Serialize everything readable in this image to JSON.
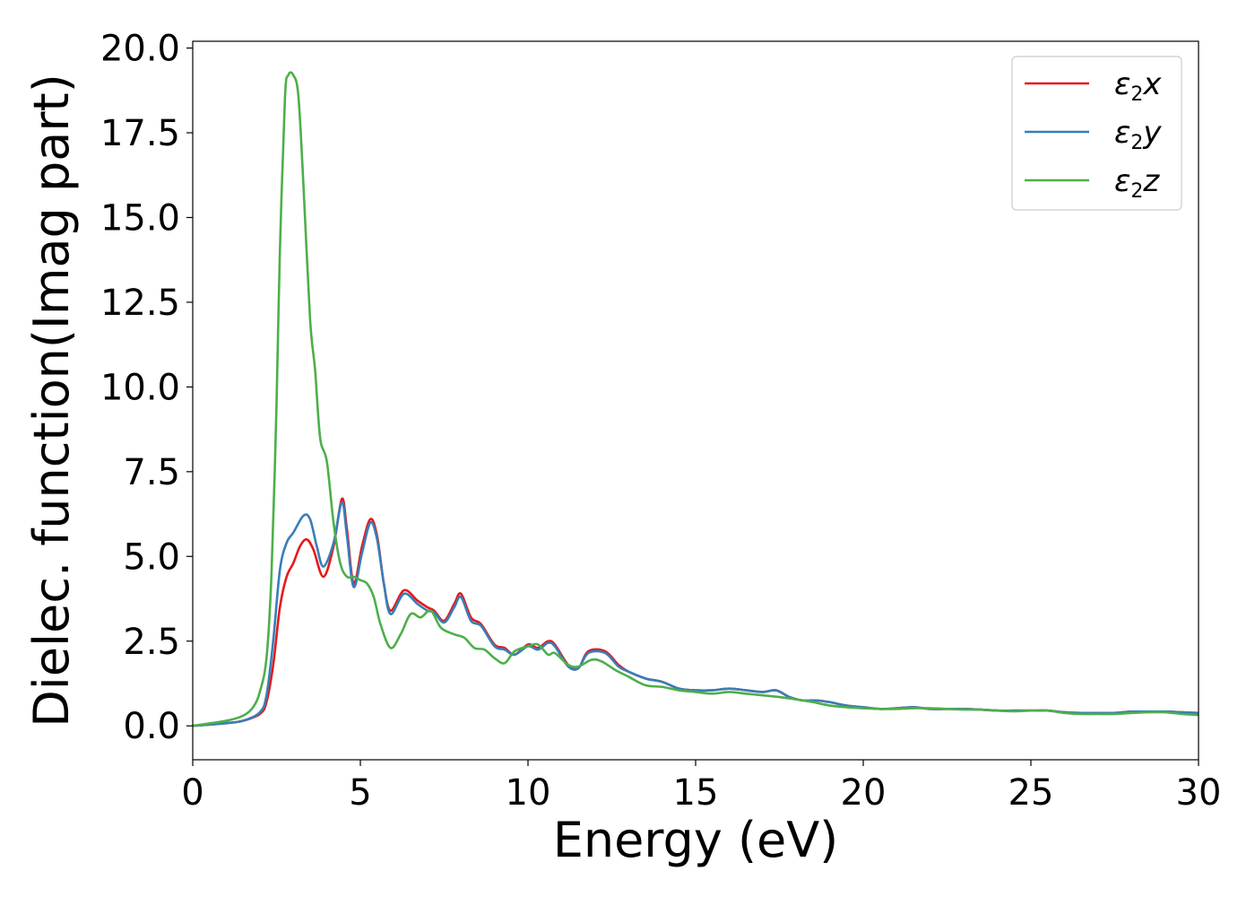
{
  "chart_data": {
    "type": "line",
    "title": "",
    "xlabel": "Energy (eV)",
    "ylabel": "Dielec. function(Imag part)",
    "xlim": [
      0,
      30
    ],
    "ylim": [
      -1.0,
      20.2
    ],
    "xticks": [
      0,
      5,
      10,
      15,
      20,
      25,
      30
    ],
    "xtick_labels": [
      "0",
      "5",
      "10",
      "15",
      "20",
      "25",
      "30"
    ],
    "yticks": [
      0.0,
      2.5,
      5.0,
      7.5,
      10.0,
      12.5,
      15.0,
      17.5,
      20.0
    ],
    "ytick_labels": [
      "0.0",
      "2.5",
      "5.0",
      "7.5",
      "10.0",
      "12.5",
      "15.0",
      "17.5",
      "20.0"
    ],
    "grid": false,
    "legend_position": "top-right",
    "series": [
      {
        "name": "ε2x",
        "legend_base": "ε",
        "legend_sub": "2",
        "legend_tail": "x",
        "color": "#e41a1c",
        "x": [
          0,
          1.0,
          1.5,
          2.0,
          2.2,
          2.4,
          2.6,
          2.8,
          3.0,
          3.2,
          3.4,
          3.6,
          3.9,
          4.2,
          4.45,
          4.6,
          4.8,
          5.05,
          5.3,
          5.5,
          5.7,
          5.9,
          6.3,
          6.7,
          7.0,
          7.2,
          7.5,
          7.8,
          8.0,
          8.3,
          8.6,
          9.0,
          9.3,
          9.6,
          10.0,
          10.3,
          10.6,
          10.8,
          11.2,
          11.5,
          11.8,
          12.3,
          12.7,
          13.0,
          13.5,
          14.0,
          14.5,
          15.0,
          15.5,
          16.0,
          16.5,
          17.0,
          17.4,
          17.8,
          18.2,
          18.6,
          19.0,
          19.5,
          20.0,
          20.5,
          21.0,
          21.5,
          22.0,
          22.5,
          23.0,
          23.5,
          24.0,
          24.5,
          25.0,
          25.5,
          26.0,
          26.5,
          27.0,
          27.5,
          28.0,
          28.5,
          29.0,
          29.5,
          30.0
        ],
        "y": [
          0,
          0.08,
          0.15,
          0.35,
          0.7,
          1.8,
          3.5,
          4.4,
          4.8,
          5.3,
          5.5,
          5.2,
          4.4,
          5.3,
          6.7,
          5.8,
          4.2,
          5.3,
          6.1,
          5.6,
          4.2,
          3.4,
          4.0,
          3.7,
          3.5,
          3.4,
          3.1,
          3.6,
          3.9,
          3.2,
          3.0,
          2.4,
          2.3,
          2.1,
          2.4,
          2.3,
          2.5,
          2.4,
          1.8,
          1.7,
          2.2,
          2.2,
          1.8,
          1.6,
          1.4,
          1.3,
          1.1,
          1.05,
          1.05,
          1.1,
          1.05,
          1.0,
          1.05,
          0.85,
          0.75,
          0.75,
          0.7,
          0.6,
          0.55,
          0.5,
          0.52,
          0.55,
          0.5,
          0.5,
          0.5,
          0.48,
          0.45,
          0.45,
          0.45,
          0.45,
          0.4,
          0.38,
          0.38,
          0.38,
          0.42,
          0.42,
          0.42,
          0.4,
          0.38
        ]
      },
      {
        "name": "ε2y",
        "legend_base": "ε",
        "legend_sub": "2",
        "legend_tail": "y",
        "color": "#377eb8",
        "x": [
          0,
          1.0,
          1.5,
          2.0,
          2.2,
          2.4,
          2.6,
          2.8,
          3.0,
          3.3,
          3.5,
          3.7,
          3.9,
          4.2,
          4.45,
          4.6,
          4.8,
          5.05,
          5.3,
          5.5,
          5.7,
          5.9,
          6.3,
          6.7,
          7.0,
          7.2,
          7.5,
          7.8,
          8.0,
          8.3,
          8.6,
          9.0,
          9.3,
          9.6,
          10.0,
          10.3,
          10.6,
          10.8,
          11.2,
          11.5,
          11.8,
          12.3,
          12.7,
          13.0,
          13.5,
          14.0,
          14.5,
          15.0,
          15.5,
          16.0,
          16.5,
          17.0,
          17.4,
          17.8,
          18.2,
          18.6,
          19.0,
          19.5,
          20.0,
          20.5,
          21.0,
          21.5,
          22.0,
          22.5,
          23.0,
          23.5,
          24.0,
          24.5,
          25.0,
          25.5,
          26.0,
          26.5,
          27.0,
          27.5,
          28.0,
          28.5,
          29.0,
          29.5,
          30.0
        ],
        "y": [
          0,
          0.08,
          0.15,
          0.4,
          0.9,
          2.5,
          4.6,
          5.4,
          5.7,
          6.2,
          6.1,
          5.3,
          4.7,
          5.4,
          6.6,
          5.6,
          4.1,
          5.1,
          6.0,
          5.5,
          4.2,
          3.3,
          3.9,
          3.6,
          3.4,
          3.35,
          3.05,
          3.5,
          3.8,
          3.1,
          2.95,
          2.35,
          2.25,
          2.1,
          2.35,
          2.25,
          2.45,
          2.35,
          1.75,
          1.7,
          2.15,
          2.15,
          1.75,
          1.6,
          1.4,
          1.3,
          1.1,
          1.05,
          1.05,
          1.1,
          1.05,
          1.0,
          1.05,
          0.85,
          0.75,
          0.75,
          0.7,
          0.6,
          0.55,
          0.5,
          0.52,
          0.55,
          0.5,
          0.5,
          0.5,
          0.48,
          0.45,
          0.45,
          0.45,
          0.45,
          0.4,
          0.38,
          0.38,
          0.38,
          0.42,
          0.42,
          0.42,
          0.4,
          0.38
        ]
      },
      {
        "name": "ε2z",
        "legend_base": "ε",
        "legend_sub": "2",
        "legend_tail": "z",
        "color": "#4daf4a",
        "x": [
          0,
          1.0,
          1.5,
          1.8,
          2.0,
          2.2,
          2.35,
          2.5,
          2.6,
          2.75,
          2.85,
          3.0,
          3.15,
          3.3,
          3.5,
          3.65,
          3.8,
          4.0,
          4.2,
          4.4,
          4.6,
          4.8,
          5.0,
          5.2,
          5.4,
          5.6,
          5.9,
          6.2,
          6.5,
          6.8,
          7.1,
          7.4,
          7.8,
          8.1,
          8.4,
          8.7,
          9.0,
          9.3,
          9.6,
          10.0,
          10.3,
          10.6,
          10.8,
          11.2,
          11.5,
          11.9,
          12.2,
          12.6,
          13.0,
          13.5,
          14.0,
          14.5,
          15.0,
          15.5,
          16.0,
          16.5,
          17.0,
          17.5,
          18.0,
          18.5,
          19.0,
          19.5,
          20.0,
          20.5,
          21.0,
          21.5,
          22.0,
          22.5,
          23.0,
          23.5,
          24.0,
          24.5,
          25.0,
          25.5,
          26.0,
          26.5,
          27.0,
          27.5,
          28.0,
          28.5,
          29.0,
          29.5,
          30.0
        ],
        "y": [
          0,
          0.15,
          0.3,
          0.55,
          1.0,
          2.0,
          4.5,
          9.5,
          14.0,
          18.5,
          19.2,
          19.2,
          18.6,
          16.0,
          12.0,
          10.5,
          8.5,
          7.8,
          6.0,
          4.8,
          4.4,
          4.4,
          4.3,
          4.2,
          3.8,
          3.0,
          2.3,
          2.7,
          3.3,
          3.2,
          3.4,
          2.9,
          2.7,
          2.6,
          2.3,
          2.25,
          2.0,
          1.85,
          2.2,
          2.35,
          2.4,
          2.1,
          2.15,
          1.8,
          1.75,
          1.95,
          1.9,
          1.65,
          1.45,
          1.2,
          1.15,
          1.05,
          1.0,
          0.95,
          1.0,
          0.95,
          0.9,
          0.85,
          0.78,
          0.7,
          0.6,
          0.55,
          0.52,
          0.5,
          0.5,
          0.52,
          0.52,
          0.5,
          0.48,
          0.48,
          0.45,
          0.43,
          0.45,
          0.45,
          0.38,
          0.35,
          0.35,
          0.35,
          0.38,
          0.4,
          0.4,
          0.35,
          0.32
        ]
      }
    ]
  }
}
